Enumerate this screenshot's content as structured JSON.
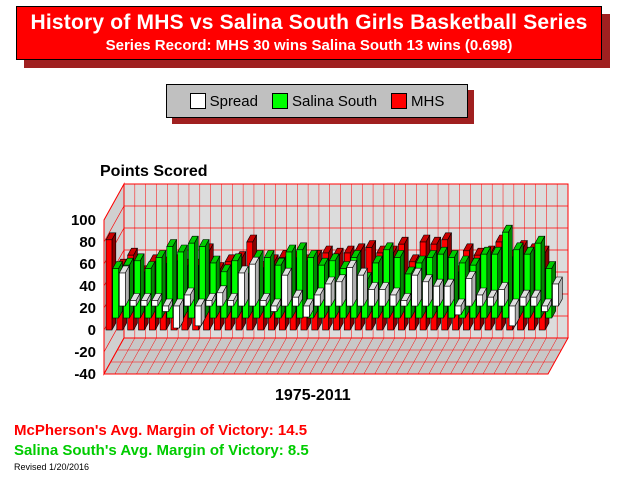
{
  "title": "History of MHS vs Salina South Girls Basketball Series",
  "subtitle": "Series Record:  MHS 30 wins  Salina South 13 wins (0.698)",
  "legend": [
    {
      "label": "Spread",
      "color": "#ffffff"
    },
    {
      "label": "Salina South",
      "color": "#00ff00"
    },
    {
      "label": "MHS",
      "color": "#ff0000"
    }
  ],
  "footer": {
    "mhs_margin": "McPherson's Avg. Margin of Victory:  14.5",
    "south_margin": "Salina South's Avg. Margin of Victory: 8.5",
    "revised": "Revised 1/20/2016"
  },
  "chart_data": {
    "type": "bar",
    "title": "Points Scored",
    "xlabel": "1975-2011",
    "ylabel": "",
    "ylim": [
      -40,
      100
    ],
    "yticks": [
      100,
      80,
      60,
      40,
      20,
      0,
      -20,
      -40
    ],
    "grid": true,
    "legend_position": "top",
    "series": [
      {
        "name": "Spread",
        "color": "#ffffff",
        "values": [
          30,
          5,
          5,
          5,
          -5,
          -20,
          10,
          -18,
          5,
          12,
          5,
          30,
          38,
          5,
          -5,
          28,
          8,
          -10,
          10,
          20,
          22,
          35,
          28,
          15,
          15,
          10,
          5,
          28,
          22,
          18,
          18,
          -8,
          25,
          10,
          8,
          15,
          -18,
          8,
          8,
          -5,
          20
        ]
      },
      {
        "name": "Salina South",
        "color": "#00ff00",
        "values": [
          45,
          48,
          52,
          45,
          55,
          65,
          60,
          68,
          65,
          50,
          42,
          52,
          40,
          55,
          55,
          48,
          60,
          62,
          55,
          48,
          52,
          45,
          55,
          35,
          50,
          62,
          55,
          40,
          50,
          55,
          58,
          55,
          50,
          48,
          58,
          58,
          78,
          62,
          58,
          68,
          45
        ]
      },
      {
        "name": "MHS",
        "color": "#ff0000",
        "values": [
          82,
          58,
          68,
          52,
          62,
          60,
          62,
          58,
          58,
          72,
          55,
          62,
          65,
          80,
          56,
          62,
          66,
          65,
          62,
          66,
          70,
          68,
          70,
          72,
          75,
          70,
          70,
          78,
          62,
          80,
          78,
          82,
          52,
          72,
          68,
          70,
          80,
          66,
          75,
          72,
          70
        ]
      }
    ]
  }
}
